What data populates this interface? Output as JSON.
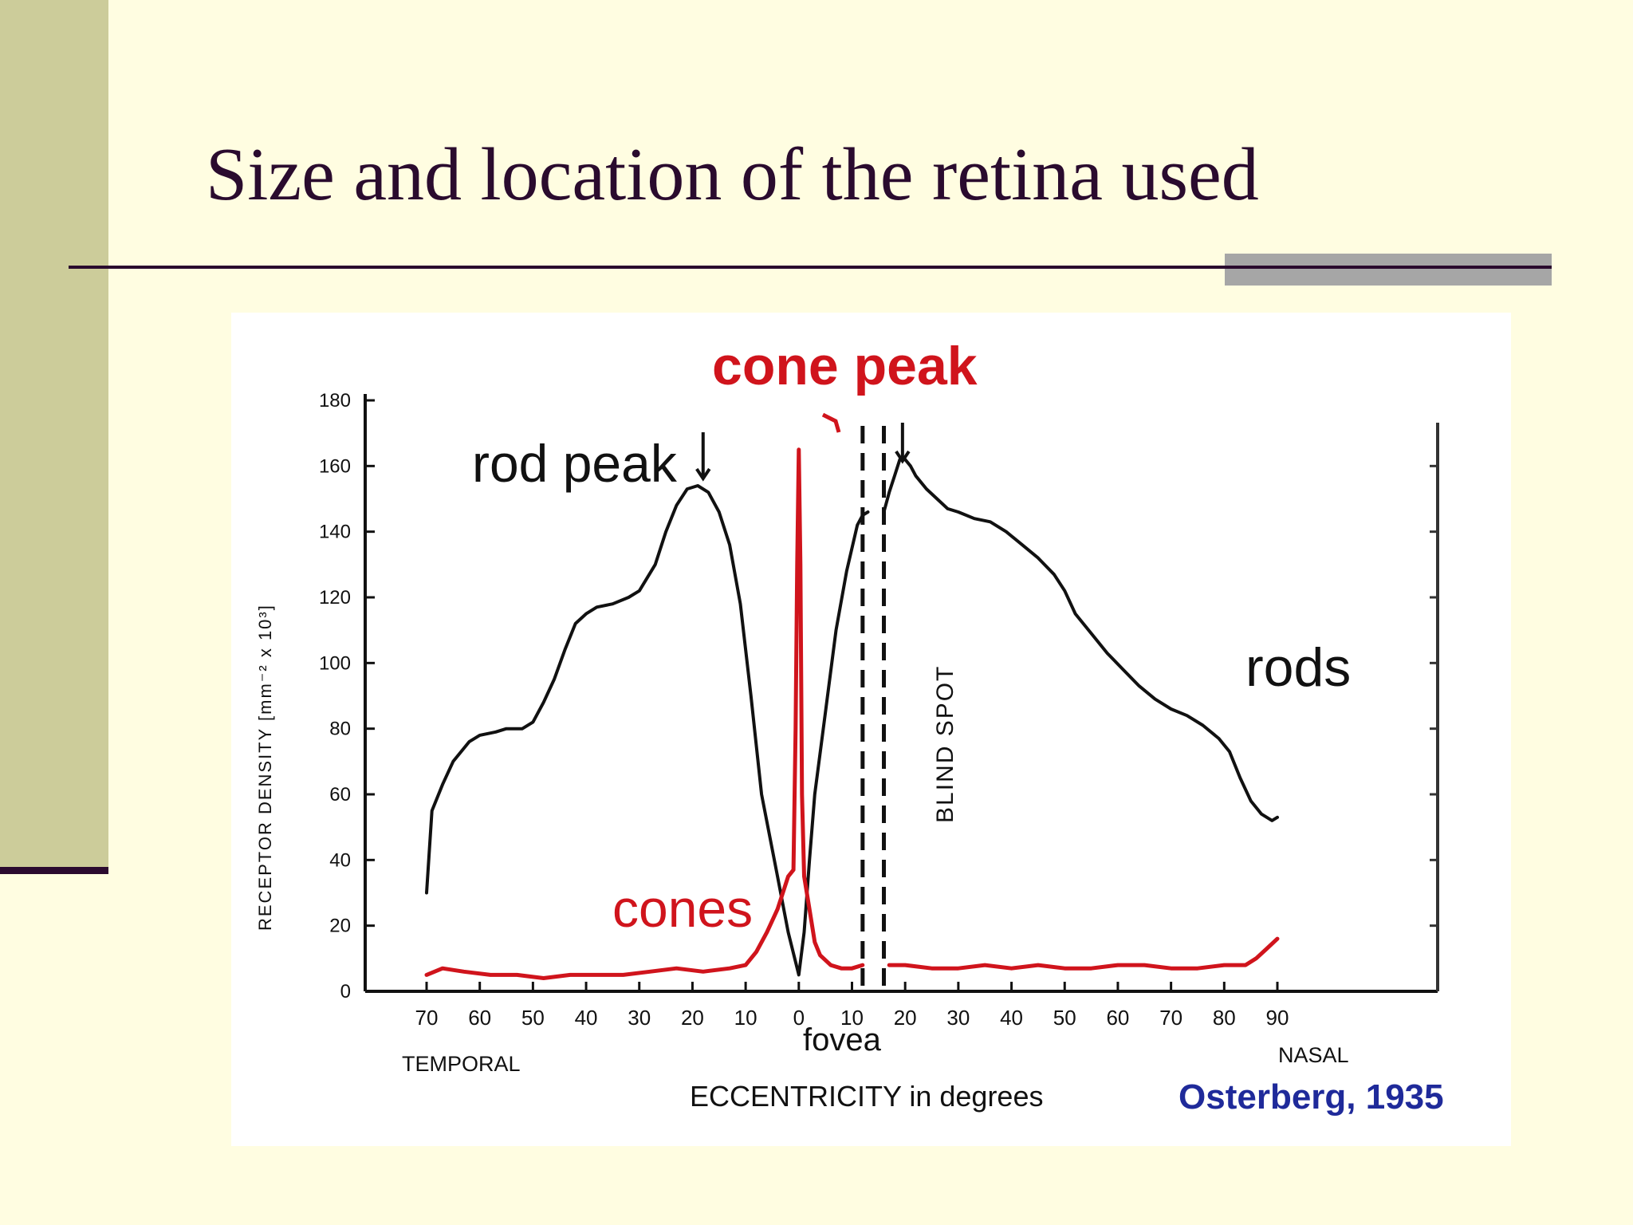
{
  "slide": {
    "title": "Size and location of the retina used"
  },
  "colors": {
    "background": "#fffde1",
    "sidebar": "#cccc9a",
    "title_text": "#2a0b2e",
    "accent_bar": "#a6a6a6",
    "rods": "#111111",
    "cones": "#d0141c",
    "citation": "#1f2a9a"
  },
  "chart_data": {
    "type": "line",
    "title": "",
    "ylabel": "RECEPTOR DENSITY [mm⁻² x 10³]",
    "xlabel": "ECCENTRICITY in degrees",
    "xlim": [
      -70,
      90
    ],
    "ylim": [
      0,
      180
    ],
    "x_ticks": [
      -70,
      -60,
      -50,
      -40,
      -30,
      -20,
      -10,
      0,
      10,
      20,
      30,
      40,
      50,
      60,
      70,
      80,
      90
    ],
    "x_tick_labels": [
      "70",
      "60",
      "50",
      "40",
      "30",
      "20",
      "10",
      "0",
      "10",
      "20",
      "30",
      "40",
      "50",
      "60",
      "70",
      "80",
      "90"
    ],
    "y_ticks": [
      0,
      20,
      40,
      60,
      80,
      100,
      120,
      140,
      160,
      180
    ],
    "y_tick_labels": [
      "0",
      "20",
      "40",
      "60",
      "80",
      "100",
      "120",
      "140",
      "160",
      "180"
    ],
    "region_labels": {
      "temporal": "TEMPORAL",
      "fovea": "fovea",
      "nasal": "NASAL"
    },
    "annotations": {
      "cone_peak": "cone peak",
      "rod_peak": "rod peak",
      "rods": "rods",
      "cones": "cones",
      "blind_spot": "BLIND SPOT",
      "citation": "Osterberg, 1935"
    },
    "blind_spot_range": [
      12,
      16
    ],
    "series": [
      {
        "name": "rods",
        "color": "#111111",
        "segments": [
          [
            [
              -70,
              30
            ],
            [
              -69,
              55
            ],
            [
              -67,
              63
            ],
            [
              -65,
              70
            ],
            [
              -62,
              76
            ],
            [
              -60,
              78
            ],
            [
              -57,
              79
            ],
            [
              -55,
              80
            ],
            [
              -52,
              80
            ],
            [
              -50,
              82
            ],
            [
              -48,
              88
            ],
            [
              -46,
              95
            ],
            [
              -44,
              104
            ],
            [
              -42,
              112
            ],
            [
              -40,
              115
            ],
            [
              -38,
              117
            ],
            [
              -35,
              118
            ],
            [
              -32,
              120
            ],
            [
              -30,
              122
            ],
            [
              -27,
              130
            ],
            [
              -25,
              140
            ],
            [
              -23,
              148
            ],
            [
              -21,
              153
            ],
            [
              -19,
              154
            ],
            [
              -17,
              152
            ],
            [
              -15,
              146
            ],
            [
              -13,
              136
            ],
            [
              -11,
              118
            ],
            [
              -9,
              90
            ],
            [
              -7,
              60
            ],
            [
              -4,
              35
            ],
            [
              -2,
              18
            ],
            [
              0,
              5
            ],
            [
              1,
              18
            ],
            [
              2,
              40
            ],
            [
              3,
              60
            ],
            [
              5,
              85
            ],
            [
              7,
              110
            ],
            [
              9,
              128
            ],
            [
              11,
              142
            ],
            [
              12,
              145
            ],
            [
              13,
              146
            ]
          ],
          [
            [
              16,
              146
            ],
            [
              17,
              152
            ],
            [
              18,
              157
            ],
            [
              19,
              162
            ],
            [
              20,
              162
            ],
            [
              21,
              160
            ],
            [
              22,
              157
            ],
            [
              24,
              153
            ],
            [
              26,
              150
            ],
            [
              28,
              147
            ],
            [
              30,
              146
            ],
            [
              33,
              144
            ],
            [
              36,
              143
            ],
            [
              39,
              140
            ],
            [
              42,
              136
            ],
            [
              45,
              132
            ],
            [
              48,
              127
            ],
            [
              50,
              122
            ],
            [
              52,
              115
            ],
            [
              55,
              109
            ],
            [
              58,
              103
            ],
            [
              61,
              98
            ],
            [
              64,
              93
            ],
            [
              67,
              89
            ],
            [
              70,
              86
            ],
            [
              73,
              84
            ],
            [
              76,
              81
            ],
            [
              79,
              77
            ],
            [
              81,
              73
            ],
            [
              83,
              65
            ],
            [
              85,
              58
            ],
            [
              87,
              54
            ],
            [
              89,
              52
            ],
            [
              90,
              53
            ]
          ]
        ]
      },
      {
        "name": "cones",
        "color": "#d0141c",
        "segments": [
          [
            [
              -70,
              5
            ],
            [
              -67,
              7
            ],
            [
              -63,
              6
            ],
            [
              -58,
              5
            ],
            [
              -53,
              5
            ],
            [
              -48,
              4
            ],
            [
              -43,
              5
            ],
            [
              -38,
              5
            ],
            [
              -33,
              5
            ],
            [
              -28,
              6
            ],
            [
              -23,
              7
            ],
            [
              -18,
              6
            ],
            [
              -13,
              7
            ],
            [
              -10,
              8
            ],
            [
              -8,
              12
            ],
            [
              -6,
              18
            ],
            [
              -4,
              25
            ],
            [
              -3,
              30
            ],
            [
              -2,
              35
            ],
            [
              -1,
              37
            ],
            [
              -0.6,
              80
            ],
            [
              -0.3,
              130
            ],
            [
              0,
              165
            ],
            [
              0.3,
              130
            ],
            [
              0.6,
              60
            ],
            [
              1,
              35
            ],
            [
              2,
              25
            ],
            [
              3,
              15
            ],
            [
              4,
              11
            ],
            [
              6,
              8
            ],
            [
              8,
              7
            ],
            [
              10,
              7
            ],
            [
              12,
              8
            ]
          ],
          [
            [
              17,
              8
            ],
            [
              20,
              8
            ],
            [
              25,
              7
            ],
            [
              30,
              7
            ],
            [
              35,
              8
            ],
            [
              40,
              7
            ],
            [
              45,
              8
            ],
            [
              50,
              7
            ],
            [
              55,
              7
            ],
            [
              60,
              8
            ],
            [
              65,
              8
            ],
            [
              70,
              7
            ],
            [
              75,
              7
            ],
            [
              80,
              8
            ],
            [
              84,
              8
            ],
            [
              86,
              10
            ],
            [
              88,
              13
            ],
            [
              90,
              16
            ]
          ]
        ]
      }
    ]
  }
}
